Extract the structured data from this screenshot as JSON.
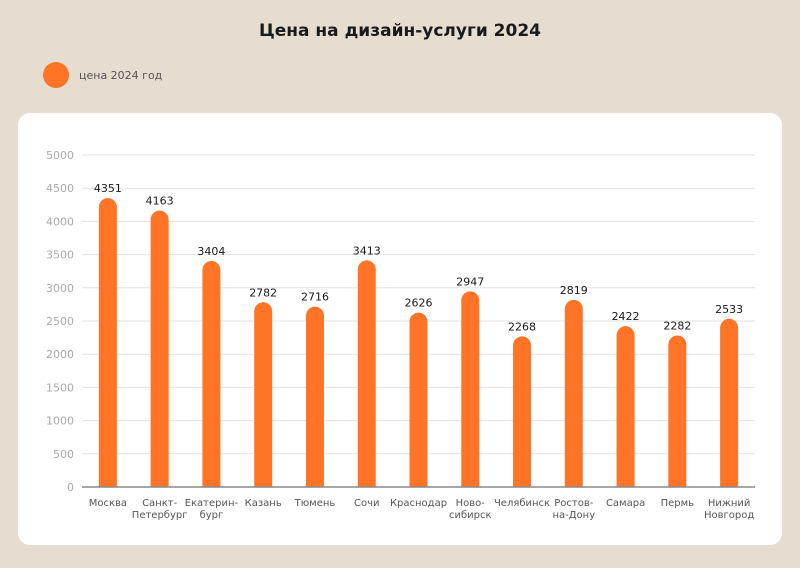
{
  "chart_data": {
    "type": "bar",
    "title": "Цена на дизайн-услуги 2024",
    "categories": [
      [
        "Москва"
      ],
      [
        "Санкт-",
        "Петербург"
      ],
      [
        "Екатерин-",
        "бург"
      ],
      [
        "Казань"
      ],
      [
        "Тюмень"
      ],
      [
        "Сочи"
      ],
      [
        "Краснодар"
      ],
      [
        "Ново-",
        "сибирск"
      ],
      [
        "Челябинск"
      ],
      [
        "Ростов-",
        "на-Дону"
      ],
      [
        "Самара"
      ],
      [
        "Пермь"
      ],
      [
        "Нижний",
        "Новгород"
      ]
    ],
    "series": [
      {
        "name": "цена 2024 год",
        "values": [
          4351,
          4163,
          3404,
          2782,
          2716,
          3413,
          2626,
          2947,
          2268,
          2819,
          2422,
          2282,
          2533
        ],
        "color": "#ff7426"
      }
    ],
    "ylim": [
      0,
      5000
    ],
    "yticks": [
      0,
      500,
      1000,
      1500,
      2000,
      2500,
      3000,
      3500,
      4000,
      4500,
      5000
    ],
    "grid": true,
    "legend": "top-left",
    "xlabel": "",
    "ylabel": ""
  }
}
